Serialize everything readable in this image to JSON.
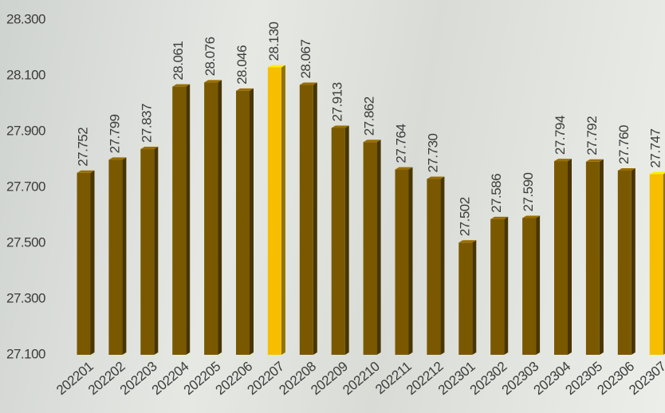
{
  "chart_data": {
    "type": "bar",
    "categories": [
      "202201",
      "202202",
      "202203",
      "202204",
      "202205",
      "202206",
      "202207",
      "202208",
      "202209",
      "202210",
      "202211",
      "202212",
      "202301",
      "202302",
      "202303",
      "202304",
      "202305",
      "202306",
      "202307"
    ],
    "values": [
      27.752,
      27.799,
      27.837,
      28.061,
      28.076,
      28.046,
      28.13,
      28.067,
      27.913,
      27.862,
      27.764,
      27.73,
      27.502,
      27.586,
      27.59,
      27.794,
      27.792,
      27.76,
      27.747
    ],
    "value_labels": [
      "27.752",
      "27.799",
      "27.837",
      "28.061",
      "28.076",
      "28.046",
      "28.130",
      "28.067",
      "27.913",
      "27.862",
      "27.764",
      "27.730",
      "27.502",
      "27.586",
      "27.590",
      "27.794",
      "27.792",
      "27.760",
      "27.747"
    ],
    "colors": [
      "#7a5800",
      "#7a5800",
      "#7a5800",
      "#7a5800",
      "#7a5800",
      "#7a5800",
      "#f7be00",
      "#7a5800",
      "#7a5800",
      "#7a5800",
      "#7a5800",
      "#7a5800",
      "#7a5800",
      "#7a5800",
      "#7a5800",
      "#7a5800",
      "#7a5800",
      "#7a5800",
      "#f7be00"
    ],
    "ylim": [
      27.1,
      28.3
    ],
    "yticks": [
      {
        "value": 27.1,
        "label": "27.100"
      },
      {
        "value": 27.3,
        "label": "27.300"
      },
      {
        "value": 27.5,
        "label": "27.500"
      },
      {
        "value": 27.7,
        "label": "27.700"
      },
      {
        "value": 27.9,
        "label": "27.900"
      },
      {
        "value": 28.1,
        "label": "28.100"
      },
      {
        "value": 28.3,
        "label": "28.300"
      }
    ],
    "grid": false
  }
}
